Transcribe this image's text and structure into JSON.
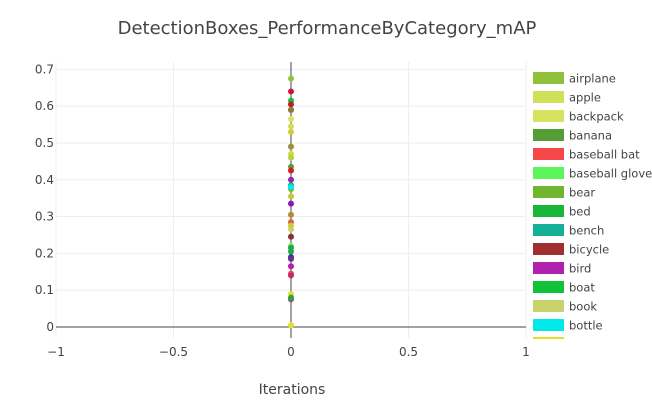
{
  "chart_data": {
    "type": "scatter",
    "title": "DetectionBoxes_PerformanceByCategory_mAP",
    "xlabel": "Iterations",
    "ylabel": "",
    "xlim": [
      -1,
      1
    ],
    "ylim": [
      -0.03,
      0.72
    ],
    "x_ticks": [
      {
        "value": -1,
        "label": "−1"
      },
      {
        "value": -0.5,
        "label": "−0.5"
      },
      {
        "value": 0,
        "label": "0"
      },
      {
        "value": 0.5,
        "label": "0.5"
      },
      {
        "value": 1,
        "label": "1"
      }
    ],
    "y_ticks": [
      {
        "value": 0,
        "label": "0"
      },
      {
        "value": 0.1,
        "label": "0.1"
      },
      {
        "value": 0.2,
        "label": "0.2"
      },
      {
        "value": 0.3,
        "label": "0.3"
      },
      {
        "value": 0.4,
        "label": "0.4"
      },
      {
        "value": 0.5,
        "label": "0.5"
      },
      {
        "value": 0.6,
        "label": "0.6"
      },
      {
        "value": 0.7,
        "label": "0.7"
      }
    ],
    "grid": true,
    "legend_position": "right",
    "legend_visible_count": 14,
    "series": [
      {
        "name": "airplane",
        "color": "#8fc13a",
        "x": [
          0
        ],
        "y": [
          0.675
        ]
      },
      {
        "name": "apple",
        "color": "#cfe05a",
        "x": [
          0
        ],
        "y": [
          0.545
        ]
      },
      {
        "name": "backpack",
        "color": "#d7e35f",
        "x": [
          0
        ],
        "y": [
          0.565
        ]
      },
      {
        "name": "banana",
        "color": "#549e35",
        "x": [
          0
        ],
        "y": [
          0.435
        ]
      },
      {
        "name": "baseball bat",
        "color": "#f54747",
        "x": [
          0
        ],
        "y": [
          0.145
        ]
      },
      {
        "name": "baseball glove",
        "color": "#5cf55c",
        "x": [
          0
        ],
        "y": [
          0.22
        ]
      },
      {
        "name": "bear",
        "color": "#6fb530",
        "x": [
          0
        ],
        "y": [
          0.375
        ]
      },
      {
        "name": "bed",
        "color": "#19b539",
        "x": [
          0
        ],
        "y": [
          0.205
        ]
      },
      {
        "name": "bench",
        "color": "#15b098",
        "x": [
          0
        ],
        "y": [
          0.385
        ]
      },
      {
        "name": "bicycle",
        "color": "#a03030",
        "x": [
          0
        ],
        "y": [
          0.59
        ]
      },
      {
        "name": "bird",
        "color": "#b021b0",
        "x": [
          0
        ],
        "y": [
          0.165
        ]
      },
      {
        "name": "boat",
        "color": "#10c23a",
        "x": [
          0
        ],
        "y": [
          0.615
        ]
      },
      {
        "name": "book",
        "color": "#c8d26a",
        "x": [
          0
        ],
        "y": [
          0.265
        ]
      },
      {
        "name": "bottle",
        "color": "#00eaea",
        "x": [
          0
        ],
        "y": [
          0.38
        ]
      },
      {
        "name": "",
        "color": "#e6e023",
        "x": [
          0
        ],
        "y": [
          0.005
        ]
      },
      {
        "name": "",
        "color": "#d3123e",
        "x": [
          0
        ],
        "y": [
          0.64
        ]
      },
      {
        "name": "",
        "color": "#c01c2c",
        "x": [
          0
        ],
        "y": [
          0.605
        ]
      },
      {
        "name": "",
        "color": "#8a7f2e",
        "x": [
          0
        ],
        "y": [
          0.59
        ]
      },
      {
        "name": "",
        "color": "#cfcc3a",
        "x": [
          0
        ],
        "y": [
          0.53
        ]
      },
      {
        "name": "",
        "color": "#a58a3e",
        "x": [
          0
        ],
        "y": [
          0.49
        ]
      },
      {
        "name": "",
        "color": "#c8e03a",
        "x": [
          0
        ],
        "y": [
          0.47
        ]
      },
      {
        "name": "",
        "color": "#b7d23e",
        "x": [
          0
        ],
        "y": [
          0.46
        ]
      },
      {
        "name": "",
        "color": "#d81b1b",
        "x": [
          0
        ],
        "y": [
          0.425
        ]
      },
      {
        "name": "",
        "color": "#8f2aa5",
        "x": [
          0
        ],
        "y": [
          0.4
        ]
      },
      {
        "name": "",
        "color": "#c8c832",
        "x": [
          0
        ],
        "y": [
          0.355
        ]
      },
      {
        "name": "",
        "color": "#8a1ab8",
        "x": [
          0
        ],
        "y": [
          0.335
        ]
      },
      {
        "name": "",
        "color": "#b38a3a",
        "x": [
          0
        ],
        "y": [
          0.305
        ]
      },
      {
        "name": "",
        "color": "#d06a3a",
        "x": [
          0
        ],
        "y": [
          0.285
        ]
      },
      {
        "name": "",
        "color": "#cfc840",
        "x": [
          0
        ],
        "y": [
          0.275
        ]
      },
      {
        "name": "",
        "color": "#8a3030",
        "x": [
          0
        ],
        "y": [
          0.245
        ]
      },
      {
        "name": "",
        "color": "#2f9f4f",
        "x": [
          0
        ],
        "y": [
          0.215
        ]
      },
      {
        "name": "",
        "color": "#343a9a",
        "x": [
          0
        ],
        "y": [
          0.19
        ]
      },
      {
        "name": "",
        "color": "#6a2a9a",
        "x": [
          0
        ],
        "y": [
          0.185
        ]
      },
      {
        "name": "",
        "color": "#c22a6a",
        "x": [
          0
        ],
        "y": [
          0.14
        ]
      },
      {
        "name": "",
        "color": "#e0e040",
        "x": [
          0
        ],
        "y": [
          0.09
        ]
      },
      {
        "name": "",
        "color": "#6a6a6a",
        "x": [
          0
        ],
        "y": [
          0.075
        ]
      },
      {
        "name": "",
        "color": "#3a9f3a",
        "x": [
          0
        ],
        "y": [
          0.08
        ]
      }
    ]
  }
}
